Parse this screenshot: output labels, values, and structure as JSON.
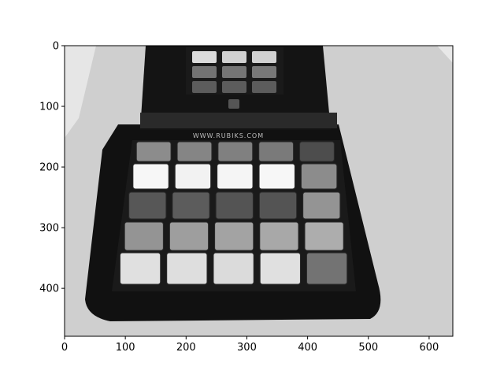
{
  "figure": {
    "image_description_tag": "grayscale-photo-rubiks-device",
    "x_ticks": [
      "0",
      "100",
      "200",
      "300",
      "400",
      "500",
      "600"
    ],
    "y_ticks": [
      "0",
      "100",
      "200",
      "300",
      "400"
    ],
    "x_range": [
      0,
      639
    ],
    "y_range": [
      479,
      0
    ]
  },
  "photo": {
    "device_text": "WWW.RUBIKS.COM",
    "colors": {
      "background_surface": "#cfcfcf",
      "device_body": "#111111",
      "grid_frame": "#1a1a1a"
    },
    "main_grid_rows": [
      [
        0.55,
        0.52,
        0.5,
        0.48,
        0.3
      ],
      [
        0.97,
        0.95,
        0.96,
        0.97,
        0.55
      ],
      [
        0.34,
        0.36,
        0.33,
        0.33,
        0.58
      ],
      [
        0.58,
        0.62,
        0.64,
        0.66,
        0.68
      ],
      [
        0.88,
        0.87,
        0.86,
        0.88,
        0.45
      ]
    ],
    "top_grid_rows": [
      [
        0.86,
        0.82,
        0.82
      ],
      [
        0.45,
        0.46,
        0.47
      ],
      [
        0.36,
        0.36,
        0.36
      ]
    ]
  }
}
